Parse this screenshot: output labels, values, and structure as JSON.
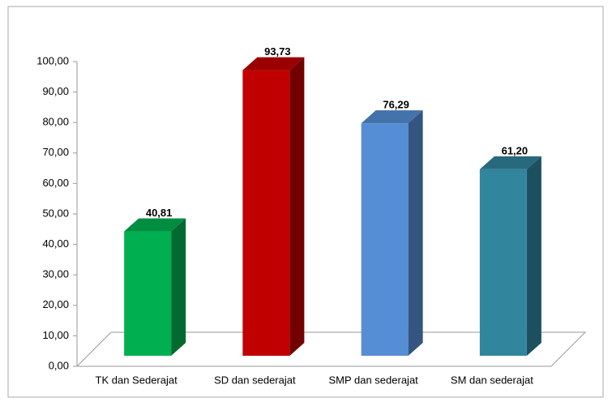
{
  "chart_data": {
    "type": "bar3d",
    "categories": [
      "TK dan Sederajat",
      "SD dan sederajat",
      "SMP dan sederajat",
      "SM dan sederajat"
    ],
    "values": [
      40.81,
      93.73,
      76.29,
      61.2
    ],
    "value_labels": [
      "40,81",
      "93,73",
      "76,29",
      "61,20"
    ],
    "colors": [
      "#00b050",
      "#c00000",
      "#558ed5",
      "#31859c"
    ],
    "ylim": [
      0,
      100
    ],
    "yticks": [
      {
        "value": 0,
        "label": "0,00"
      },
      {
        "value": 10,
        "label": "10,00"
      },
      {
        "value": 20,
        "label": "20,00"
      },
      {
        "value": 30,
        "label": "30,00"
      },
      {
        "value": 40,
        "label": "40,00"
      },
      {
        "value": 50,
        "label": "50,00"
      },
      {
        "value": 60,
        "label": "60,00"
      },
      {
        "value": 70,
        "label": "70,00"
      },
      {
        "value": 80,
        "label": "80,00"
      },
      {
        "value": 90,
        "label": "90,00"
      },
      {
        "value": 100,
        "label": "100,00"
      }
    ]
  }
}
